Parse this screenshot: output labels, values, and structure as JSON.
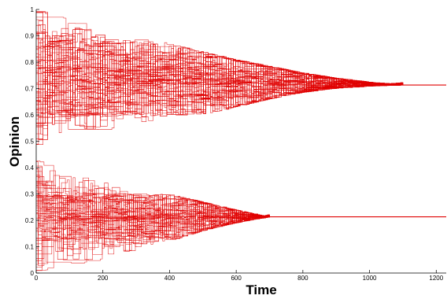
{
  "chart_data": {
    "type": "line",
    "title": "",
    "xlabel": "Time",
    "ylabel": "Opinion",
    "xlim": [
      0,
      1230
    ],
    "ylim": [
      0,
      1
    ],
    "x_ticks": [
      0,
      200,
      400,
      600,
      800,
      1000,
      1200
    ],
    "y_ticks": [
      0,
      0.1,
      0.2,
      0.3,
      0.4,
      0.5,
      0.6,
      0.7,
      0.8,
      0.9,
      1
    ],
    "x_tick_labels": [
      "0",
      "200",
      "400",
      "600",
      "800",
      "1000",
      "1200"
    ],
    "y_tick_labels": [
      "0",
      "0.1",
      "0.2",
      "0.3",
      "0.4",
      "0.5",
      "0.6",
      "0.7",
      "0.8",
      "0.9",
      "1"
    ],
    "grid": false,
    "legend": "none",
    "line_color": "#e00000",
    "clusters": [
      {
        "name": "upper",
        "initial_range": [
          0.48,
          1.0
        ],
        "consensus_value": 0.713,
        "consensus_time": 1100,
        "envelope": {
          "x": [
            0,
            50,
            100,
            200,
            300,
            400,
            500,
            600,
            700,
            800,
            900,
            1000,
            1100
          ],
          "upper": [
            1.0,
            0.985,
            0.96,
            0.93,
            0.9,
            0.87,
            0.84,
            0.81,
            0.785,
            0.76,
            0.74,
            0.725,
            0.713
          ],
          "lower": [
            0.48,
            0.5,
            0.52,
            0.54,
            0.56,
            0.58,
            0.6,
            0.63,
            0.66,
            0.685,
            0.7,
            0.708,
            0.713
          ]
        },
        "subgroups": [
          0.88,
          0.72,
          0.6
        ]
      },
      {
        "name": "lower",
        "initial_range": [
          0.0,
          0.43
        ],
        "consensus_value": 0.213,
        "consensus_time": 700,
        "envelope": {
          "x": [
            0,
            50,
            100,
            200,
            300,
            400,
            500,
            600,
            700
          ],
          "upper": [
            0.43,
            0.41,
            0.39,
            0.36,
            0.33,
            0.3,
            0.27,
            0.24,
            0.213
          ],
          "lower": [
            0.0,
            0.02,
            0.03,
            0.05,
            0.08,
            0.12,
            0.16,
            0.19,
            0.213
          ]
        },
        "subgroups": [
          0.3,
          0.21,
          0.13
        ]
      }
    ]
  }
}
